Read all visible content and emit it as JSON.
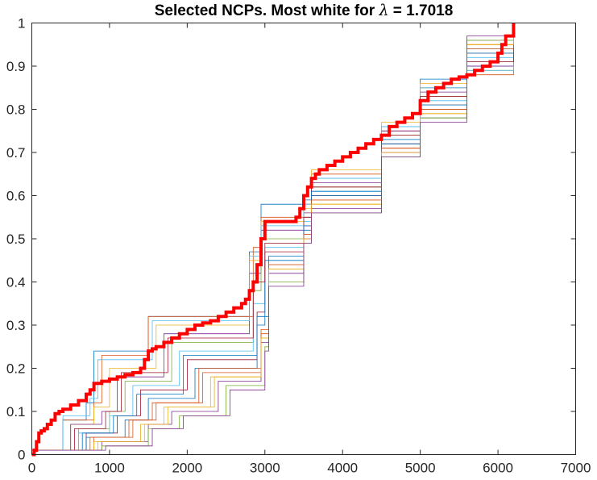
{
  "chart_data": {
    "type": "line",
    "title": {
      "prefix": "Selected NCPs.  Most white for ",
      "symbol": "λ",
      "suffix": " = 1.7018"
    },
    "xlabel": "",
    "ylabel": "",
    "xlim": [
      0,
      7000
    ],
    "ylim": [
      0,
      1
    ],
    "xticks": [
      0,
      1000,
      2000,
      3000,
      4000,
      5000,
      6000,
      7000
    ],
    "yticks": [
      0,
      0.1,
      0.2,
      0.3,
      0.4,
      0.5,
      0.6,
      0.7,
      0.8,
      0.9,
      1
    ],
    "grid": false,
    "legend": "none",
    "background_series": {
      "colors": [
        "#0072BD",
        "#D95319",
        "#EDB120",
        "#7E2F8E",
        "#77AC30",
        "#4DBEEE",
        "#A2142F"
      ],
      "line_width": 0.8,
      "series": [
        {
          "x": [
            0,
            400,
            700,
            800,
            1500,
            2800,
            2950,
            3500,
            3600,
            4500,
            5000,
            5600,
            6200
          ],
          "y": [
            0.01,
            0.08,
            0.12,
            0.24,
            0.32,
            0.47,
            0.58,
            0.59,
            0.64,
            0.76,
            0.87,
            0.9,
            1.0
          ]
        },
        {
          "x": [
            0,
            400,
            800,
            900,
            1500,
            2850,
            2950,
            3500,
            3600,
            4500,
            5000,
            5600,
            6200
          ],
          "y": [
            0.01,
            0.08,
            0.12,
            0.23,
            0.32,
            0.48,
            0.55,
            0.58,
            0.65,
            0.75,
            0.85,
            0.88,
            1.0
          ]
        },
        {
          "x": [
            0,
            500,
            800,
            1000,
            1600,
            2800,
            2950,
            3500,
            3600,
            4500,
            5000,
            5600,
            6200
          ],
          "y": [
            0.01,
            0.07,
            0.11,
            0.2,
            0.3,
            0.45,
            0.54,
            0.57,
            0.66,
            0.77,
            0.86,
            0.89,
            1.0
          ]
        },
        {
          "x": [
            0,
            500,
            900,
            1100,
            1700,
            2800,
            2950,
            3500,
            3600,
            4500,
            5000,
            5600,
            6200
          ],
          "y": [
            0.01,
            0.07,
            0.1,
            0.18,
            0.28,
            0.42,
            0.52,
            0.56,
            0.63,
            0.75,
            0.84,
            0.9,
            1.0
          ]
        },
        {
          "x": [
            0,
            600,
            1000,
            1200,
            1800,
            2850,
            2950,
            3500,
            3600,
            4500,
            5000,
            5600,
            6200
          ],
          "y": [
            0.01,
            0.06,
            0.1,
            0.17,
            0.26,
            0.38,
            0.5,
            0.55,
            0.62,
            0.74,
            0.83,
            0.91,
            1.0
          ]
        },
        {
          "x": [
            0,
            600,
            1000,
            1300,
            1900,
            2850,
            3000,
            3500,
            3600,
            4500,
            5000,
            5600,
            6200
          ],
          "y": [
            0.01,
            0.05,
            0.09,
            0.16,
            0.24,
            0.35,
            0.48,
            0.54,
            0.61,
            0.73,
            0.82,
            0.92,
            1.0
          ]
        },
        {
          "x": [
            0,
            700,
            1100,
            1400,
            2000,
            2900,
            3000,
            3500,
            3600,
            4500,
            5000,
            5600,
            6200
          ],
          "y": [
            0.01,
            0.05,
            0.09,
            0.15,
            0.22,
            0.33,
            0.47,
            0.53,
            0.6,
            0.72,
            0.81,
            0.93,
            1.0
          ]
        },
        {
          "x": [
            0,
            700,
            1200,
            1500,
            2100,
            2900,
            3000,
            3500,
            3600,
            4500,
            5000,
            5600,
            6200
          ],
          "y": [
            0.01,
            0.04,
            0.08,
            0.13,
            0.2,
            0.3,
            0.45,
            0.52,
            0.6,
            0.72,
            0.8,
            0.94,
            1.0
          ]
        },
        {
          "x": [
            0,
            800,
            1300,
            1600,
            2200,
            2950,
            3050,
            3500,
            3600,
            4500,
            5000,
            5600,
            6200
          ],
          "y": [
            0.01,
            0.04,
            0.08,
            0.12,
            0.19,
            0.28,
            0.44,
            0.51,
            0.59,
            0.71,
            0.8,
            0.95,
            1.0
          ]
        },
        {
          "x": [
            0,
            800,
            1400,
            1700,
            2300,
            2950,
            3050,
            3500,
            3600,
            4500,
            5000,
            5600,
            6200
          ],
          "y": [
            0.01,
            0.03,
            0.07,
            0.11,
            0.18,
            0.27,
            0.43,
            0.5,
            0.58,
            0.7,
            0.79,
            0.95,
            1.0
          ]
        },
        {
          "x": [
            0,
            900,
            1500,
            1800,
            2400,
            2950,
            3050,
            3500,
            3600,
            4500,
            5000,
            5600,
            6200
          ],
          "y": [
            0.01,
            0.03,
            0.07,
            0.1,
            0.17,
            0.26,
            0.42,
            0.5,
            0.57,
            0.7,
            0.78,
            0.96,
            1.0
          ]
        },
        {
          "x": [
            0,
            900,
            1500,
            1900,
            2500,
            3000,
            3050,
            3500,
            3600,
            4500,
            5000,
            5600,
            6200
          ],
          "y": [
            0.01,
            0.02,
            0.06,
            0.09,
            0.16,
            0.25,
            0.4,
            0.49,
            0.56,
            0.69,
            0.78,
            0.96,
            1.0
          ]
        },
        {
          "x": [
            0,
            400,
            750,
            850,
            1550,
            2800,
            2950,
            3500,
            3600,
            4500,
            5000,
            5600,
            6200
          ],
          "y": [
            0.01,
            0.09,
            0.13,
            0.22,
            0.31,
            0.46,
            0.53,
            0.58,
            0.64,
            0.76,
            0.85,
            0.89,
            1.0
          ]
        },
        {
          "x": [
            0,
            550,
            950,
            1150,
            1750,
            2850,
            3000,
            3500,
            3600,
            4500,
            5000,
            5600,
            6200
          ],
          "y": [
            0.01,
            0.06,
            0.1,
            0.19,
            0.27,
            0.4,
            0.49,
            0.55,
            0.62,
            0.74,
            0.83,
            0.91,
            1.0
          ]
        },
        {
          "x": [
            0,
            650,
            1050,
            1350,
            1950,
            2900,
            3050,
            3500,
            3600,
            4500,
            5000,
            5600,
            6200
          ],
          "y": [
            0.01,
            0.05,
            0.09,
            0.14,
            0.23,
            0.32,
            0.46,
            0.53,
            0.61,
            0.73,
            0.81,
            0.93,
            1.0
          ]
        },
        {
          "x": [
            0,
            750,
            1250,
            1550,
            2150,
            2950,
            3050,
            3500,
            3600,
            4500,
            5000,
            5600,
            6200
          ],
          "y": [
            0.01,
            0.04,
            0.08,
            0.12,
            0.2,
            0.29,
            0.44,
            0.51,
            0.59,
            0.71,
            0.8,
            0.94,
            1.0
          ]
        },
        {
          "x": [
            0,
            850,
            1450,
            1750,
            2350,
            2950,
            3050,
            3500,
            3600,
            4500,
            5000,
            5600,
            6200
          ],
          "y": [
            0.01,
            0.03,
            0.07,
            0.11,
            0.18,
            0.27,
            0.43,
            0.5,
            0.58,
            0.7,
            0.79,
            0.95,
            1.0
          ]
        },
        {
          "x": [
            0,
            950,
            1550,
            1950,
            2550,
            3000,
            3050,
            3500,
            3600,
            4500,
            5000,
            5600,
            6200
          ],
          "y": [
            0.01,
            0.02,
            0.06,
            0.09,
            0.15,
            0.24,
            0.39,
            0.49,
            0.56,
            0.69,
            0.77,
            0.97,
            1.0
          ]
        }
      ]
    },
    "highlighted_series": {
      "name": "",
      "color": "#FF0000",
      "line_width": 4,
      "x": [
        0,
        30,
        60,
        90,
        120,
        160,
        200,
        250,
        300,
        350,
        400,
        500,
        600,
        700,
        750,
        800,
        900,
        1000,
        1100,
        1200,
        1300,
        1400,
        1450,
        1500,
        1550,
        1600,
        1700,
        1800,
        1900,
        2000,
        2100,
        2200,
        2300,
        2400,
        2500,
        2600,
        2700,
        2750,
        2800,
        2850,
        2900,
        2950,
        3000,
        3100,
        3200,
        3300,
        3400,
        3450,
        3500,
        3550,
        3600,
        3650,
        3700,
        3800,
        3900,
        4000,
        4100,
        4200,
        4300,
        4400,
        4500,
        4600,
        4700,
        4800,
        4900,
        5000,
        5100,
        5200,
        5300,
        5400,
        5500,
        5600,
        5700,
        5800,
        5900,
        6000,
        6050,
        6100,
        6200
      ],
      "y": [
        0,
        0.01,
        0.03,
        0.05,
        0.055,
        0.06,
        0.07,
        0.08,
        0.095,
        0.1,
        0.105,
        0.115,
        0.125,
        0.14,
        0.15,
        0.165,
        0.17,
        0.175,
        0.18,
        0.185,
        0.19,
        0.2,
        0.22,
        0.24,
        0.245,
        0.25,
        0.26,
        0.27,
        0.28,
        0.29,
        0.3,
        0.305,
        0.31,
        0.32,
        0.33,
        0.34,
        0.35,
        0.36,
        0.38,
        0.4,
        0.44,
        0.5,
        0.54,
        0.54,
        0.54,
        0.54,
        0.55,
        0.57,
        0.6,
        0.62,
        0.64,
        0.65,
        0.66,
        0.67,
        0.68,
        0.69,
        0.7,
        0.71,
        0.72,
        0.73,
        0.74,
        0.76,
        0.77,
        0.78,
        0.79,
        0.82,
        0.84,
        0.85,
        0.86,
        0.87,
        0.875,
        0.88,
        0.89,
        0.9,
        0.91,
        0.93,
        0.95,
        0.97,
        1.0
      ]
    }
  }
}
